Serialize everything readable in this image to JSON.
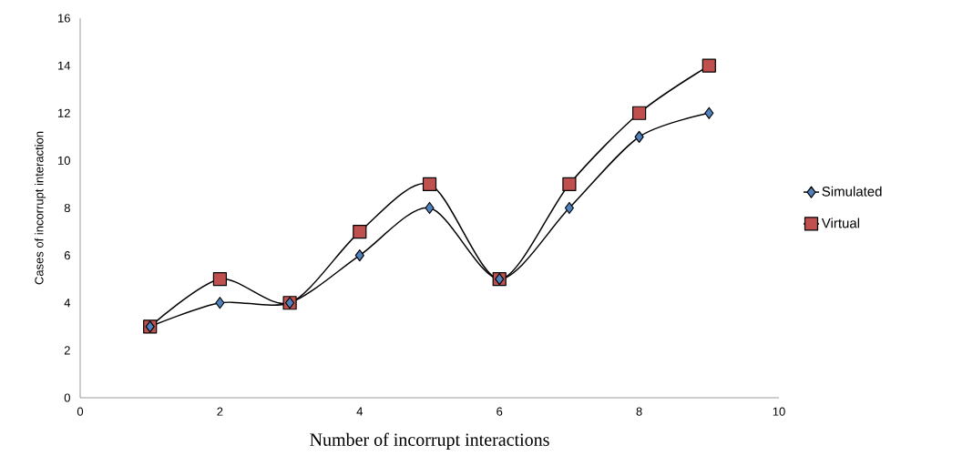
{
  "chart_data": {
    "type": "line",
    "xlabel": "Number of incorrupt interactions",
    "ylabel": "Cases of incorrupt interaction",
    "x": [
      1,
      2,
      3,
      4,
      5,
      6,
      7,
      8,
      9
    ],
    "series": [
      {
        "name": "Simulated",
        "color": "#4f81bd",
        "marker": "diamond",
        "values": [
          3,
          4,
          4,
          6,
          8,
          5,
          8,
          11,
          12
        ]
      },
      {
        "name": "Virtual",
        "color": "#c0504d",
        "marker": "square",
        "values": [
          3,
          5,
          4,
          7,
          9,
          5,
          9,
          12,
          14
        ]
      }
    ],
    "xlim": [
      0,
      10
    ],
    "xticks": [
      0,
      2,
      4,
      6,
      8,
      10
    ],
    "ylim": [
      0,
      16
    ],
    "yticks": [
      0,
      2,
      4,
      6,
      8,
      10,
      12,
      14,
      16
    ],
    "grid": false,
    "legend": "right",
    "line_style": "solid"
  }
}
